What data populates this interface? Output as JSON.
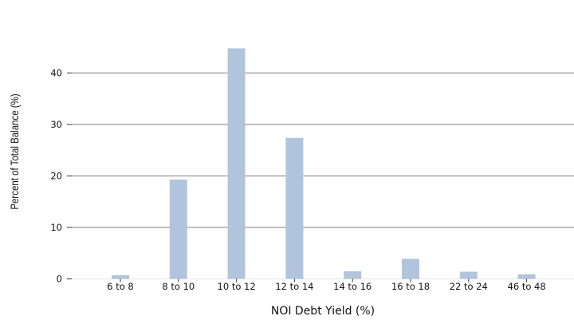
{
  "chart_data": {
    "type": "bar",
    "title": "",
    "xlabel": "NOI Debt Yield (%)",
    "ylabel": "Percent of Total Balance (%)",
    "categories": [
      "6 to 8",
      "8 to 10",
      "10 to 12",
      "12 to 14",
      "14 to 16",
      "16 to 18",
      "22 to 24",
      "46 to 48"
    ],
    "values": [
      0.7,
      19.3,
      44.8,
      27.4,
      1.5,
      3.9,
      1.4,
      0.9
    ],
    "ylim": [
      0,
      48
    ],
    "yticks": [
      0,
      10,
      20,
      30,
      40
    ],
    "grid": true,
    "legend": "none",
    "bar_color": "#b0c4de",
    "grid_color": "#7f7f7f"
  }
}
